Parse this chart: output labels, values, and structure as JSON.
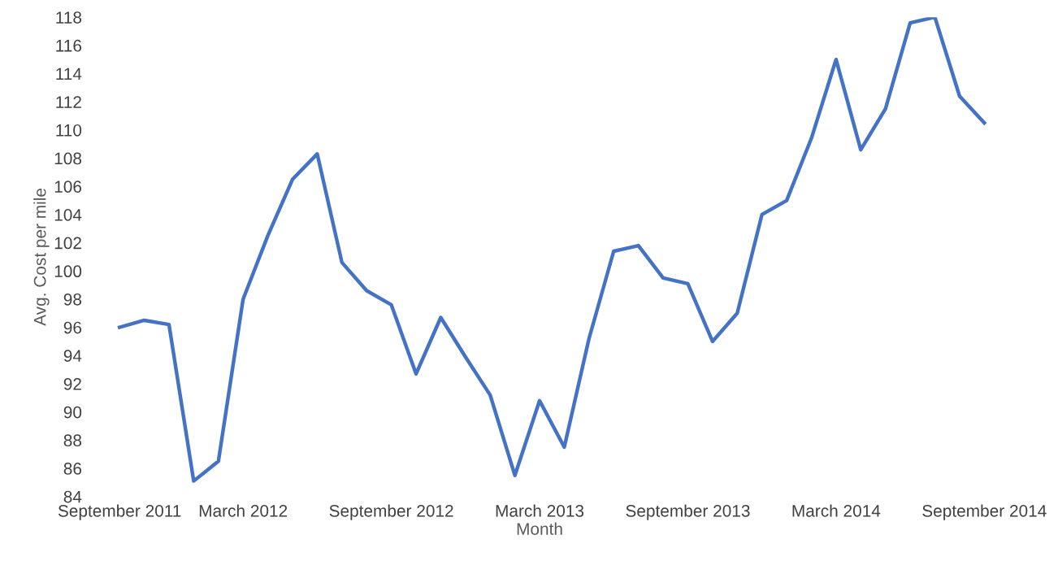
{
  "chart_data": {
    "type": "line",
    "xlabel": "Month",
    "ylabel": "Avg. Cost per mile",
    "categories": [
      "September 2011",
      null,
      null,
      null,
      null,
      "March 2012",
      null,
      null,
      null,
      null,
      null,
      "September 2012",
      null,
      null,
      null,
      null,
      null,
      "March 2013",
      null,
      null,
      null,
      null,
      null,
      "September 2013",
      null,
      null,
      null,
      null,
      null,
      "March 2014",
      null,
      null,
      null,
      null,
      null,
      "September 2014"
    ],
    "series": [
      {
        "color": "#4472c4",
        "values": [
          96.0,
          96.5,
          96.2,
          85.1,
          86.5,
          98.0,
          102.5,
          106.5,
          108.3,
          100.6,
          98.6,
          97.6,
          92.7,
          96.7,
          93.9,
          91.2,
          85.5,
          90.8,
          87.5,
          95.2,
          101.4,
          101.8,
          99.5,
          99.1,
          95.0,
          97.0,
          104.0,
          105.0,
          109.4,
          115.0,
          108.6,
          111.5,
          117.6,
          118.0,
          112.4,
          110.5
        ]
      }
    ],
    "ylim": [
      84,
      118
    ],
    "yticks": [
      84,
      86,
      88,
      90,
      92,
      94,
      96,
      98,
      100,
      102,
      104,
      106,
      108,
      110,
      112,
      114,
      116,
      118
    ],
    "grid": false,
    "marker": "none",
    "line_style": "solid"
  }
}
